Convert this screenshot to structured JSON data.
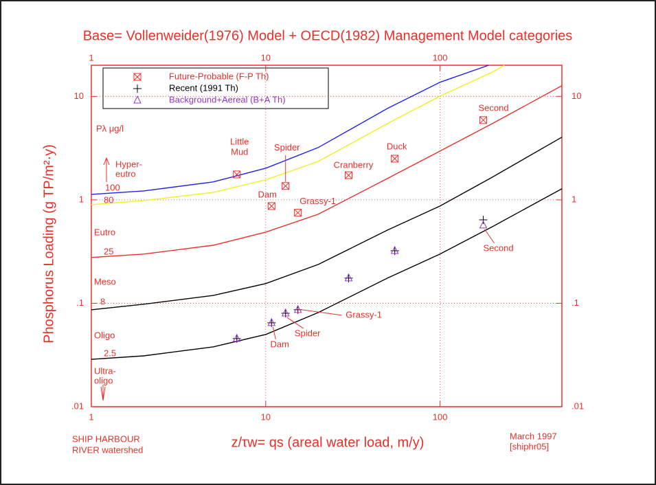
{
  "chart_data": {
    "type": "scatter",
    "title": "Base= Vollenweider(1976) Model + OECD(1982) Management Model categories",
    "xlabel": "z/τw= qs (areal water load, m/y)",
    "ylabel": "Phosphorus Loading (g TP/m²·y)",
    "log_x": true,
    "log_y": true,
    "grid": true,
    "xlim": [
      1,
      500
    ],
    "ylim": [
      0.01,
      20
    ],
    "xticks": [
      1,
      10,
      100
    ],
    "yticks": [
      {
        "value": 0.01,
        "label": ".01"
      },
      {
        "value": 0.1,
        "label": ".1"
      },
      1,
      10
    ],
    "legend": "top-left",
    "curve_title": "Pλ μg/l",
    "trophic_labels": [
      [
        "Hyper-",
        "eutro"
      ],
      [
        "Eutro"
      ],
      [
        "Meso"
      ],
      [
        "Oligo"
      ],
      [
        "Ultra-",
        "oligo"
      ]
    ],
    "footnote_left": [
      "SHIP HARBOUR",
      "RIVER watershed"
    ],
    "footnote_right": [
      "March 1997",
      "[shiphr05]"
    ],
    "curves": [
      {
        "label": "100",
        "color": "#2020ee",
        "x": [
          1,
          2,
          5,
          10,
          20,
          50,
          100,
          190
        ],
        "values": [
          1.13,
          1.22,
          1.49,
          2.02,
          3.2,
          7.65,
          13.7,
          20
        ]
      },
      {
        "label": "80",
        "color": "#f0f020",
        "x": [
          1,
          2,
          5,
          10,
          20,
          50,
          100,
          200,
          234
        ],
        "values": [
          0.898,
          0.985,
          1.18,
          1.56,
          2.35,
          5.47,
          10.07,
          17.2,
          20
        ]
      },
      {
        "label": "25",
        "color": "#e8302a",
        "x": [
          1,
          2,
          5,
          10,
          20,
          50,
          100,
          200,
          500
        ],
        "values": [
          0.277,
          0.299,
          0.364,
          0.487,
          0.725,
          1.61,
          2.96,
          5.47,
          12.7
        ]
      },
      {
        "label": "8",
        "color": "#000000",
        "x": [
          1,
          2,
          5,
          10,
          20,
          50,
          100,
          200,
          500
        ],
        "values": [
          0.0865,
          0.098,
          0.119,
          0.155,
          0.237,
          0.51,
          0.871,
          1.66,
          4.03
        ]
      },
      {
        "label": "2.5",
        "color": "#000000",
        "x": [
          1,
          2,
          5,
          10,
          20,
          50,
          100,
          200,
          500
        ],
        "values": [
          0.0287,
          0.031,
          0.0379,
          0.0499,
          0.0813,
          0.175,
          0.299,
          0.551,
          1.28
        ]
      }
    ],
    "series": [
      {
        "name": "Future-Probable (F-P Th)",
        "color": "#e8302a",
        "marker": "box-x",
        "x": [
          6.83,
          13.0,
          10.8,
          15.3,
          29.9,
          55,
          177
        ],
        "values": [
          1.76,
          1.36,
          0.87,
          0.75,
          1.73,
          2.5,
          5.9
        ],
        "point_labels": [
          [
            "Little",
            "Mud"
          ],
          [
            "Spider"
          ],
          [
            "Dam"
          ],
          [
            "Grassy-1"
          ],
          [
            "Cranberry"
          ],
          [
            "Duck"
          ],
          [
            "Second"
          ]
        ]
      },
      {
        "name": "Recent (1991 Th)",
        "color": "#000000",
        "marker": "plus",
        "x": [
          6.83,
          13.0,
          10.8,
          15.3,
          29.9,
          55,
          177
        ],
        "values": [
          0.0455,
          0.08,
          0.0647,
          0.0865,
          0.175,
          0.322,
          0.641
        ]
      },
      {
        "name": "Background+Aereal (B+A Th)",
        "color": "#9933cc",
        "marker": "triangle",
        "x": [
          6.83,
          13.0,
          10.8,
          15.3,
          29.9,
          55,
          177
        ],
        "values": [
          0.0455,
          0.08,
          0.0647,
          0.0865,
          0.175,
          0.322,
          0.568
        ],
        "point_labels": [
          null,
          [
            "Spider"
          ],
          [
            "Dam"
          ],
          [
            "Grassy-1"
          ],
          null,
          null,
          [
            "Second"
          ]
        ]
      }
    ]
  }
}
